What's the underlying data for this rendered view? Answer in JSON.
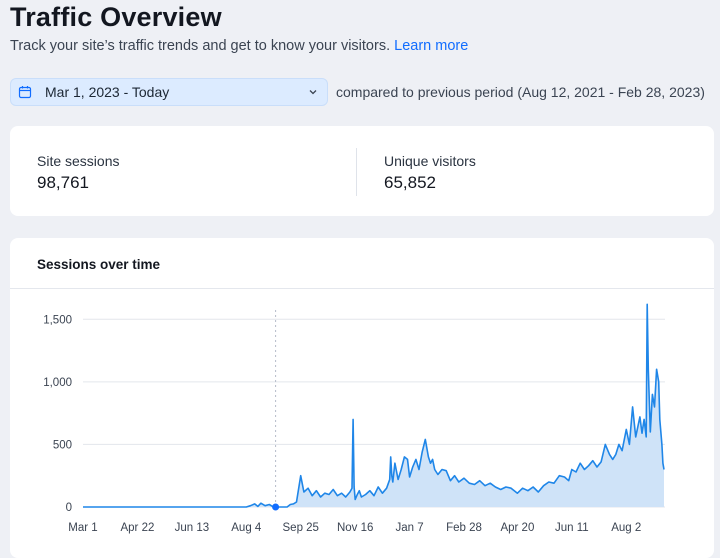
{
  "header": {
    "title": "Traffic Overview",
    "subtitle": "Track your site’s traffic trends and get to know your visitors.",
    "learn_more": "Learn more"
  },
  "date_filter": {
    "icon": "calendar-icon",
    "selected": "Mar 1, 2023 - Today",
    "comparison": "compared to previous period (Aug 12, 2021 - Feb 28, 2023)"
  },
  "stats": {
    "site_sessions": {
      "label": "Site sessions",
      "value": "98,761"
    },
    "unique_visitors": {
      "label": "Unique visitors",
      "value": "65,852"
    }
  },
  "chart_panel": {
    "title": "Sessions over time"
  },
  "colors": {
    "accent": "#116dff",
    "line": "#1f86e8",
    "fill": "#cfe3f8"
  },
  "chart_data": {
    "type": "area",
    "title": "Sessions over time",
    "xlabel": "",
    "ylabel": "",
    "ylim": [
      0,
      1750
    ],
    "yticks": [
      0,
      500,
      1000,
      1500
    ],
    "ytick_labels": [
      "0",
      "500",
      "1,000",
      "1,500"
    ],
    "xticks": [
      "Mar 1",
      "Apr 22",
      "Jun 13",
      "Aug 4",
      "Sep 25",
      "Nov 16",
      "Jan 7",
      "Feb 28",
      "Apr 20",
      "Jun 11",
      "Aug 2"
    ],
    "grid": true,
    "series": [
      {
        "x": [
          "Mar 1",
          "Mar 15",
          "Apr 1",
          "Apr 22",
          "May 15",
          "Jun 13",
          "Jul 10",
          "Jul 25",
          "Jul 30",
          "Aug 4",
          "Aug 8",
          "Aug 12",
          "Aug 15",
          "Aug 18",
          "Aug 22",
          "Aug 26",
          "Aug 29",
          "Sep 1",
          "Sep 8",
          "Sep 10",
          "Sep 12",
          "Sep 15",
          "Sep 18",
          "Sep 21",
          "Sep 25",
          "Sep 28",
          "Oct 2",
          "Oct 6",
          "Oct 10",
          "Oct 14",
          "Oct 18",
          "Oct 22",
          "Oct 26",
          "Oct 30",
          "Nov 3",
          "Nov 7",
          "Nov 11",
          "Nov 13",
          "Nov 14",
          "Nov 15",
          "Nov 16",
          "Nov 18",
          "Nov 20",
          "Nov 22",
          "Nov 26",
          "Nov 30",
          "Dec 4",
          "Dec 8",
          "Dec 12",
          "Dec 16",
          "Dec 19",
          "Dec 20",
          "Dec 21",
          "Dec 22",
          "Dec 24",
          "Dec 27",
          "Dec 30",
          "Jan 2",
          "Jan 5",
          "Jan 7",
          "Jan 10",
          "Jan 13",
          "Jan 16",
          "Jan 19",
          "Jan 22",
          "Jan 25",
          "Jan 27",
          "Jan 29",
          "Jan 31",
          "Feb 3",
          "Feb 7",
          "Feb 11",
          "Feb 15",
          "Feb 19",
          "Feb 23",
          "Feb 28",
          "Mar 5",
          "Mar 10",
          "Mar 15",
          "Mar 20",
          "Mar 25",
          "Mar 30",
          "Apr 4",
          "Apr 9",
          "Apr 14",
          "Apr 20",
          "Apr 25",
          "Apr 30",
          "May 5",
          "May 10",
          "May 15",
          "May 20",
          "May 25",
          "May 30",
          "Jun 4",
          "Jun 8",
          "Jun 11",
          "Jun 15",
          "Jun 19",
          "Jun 23",
          "Jun 27",
          "Jul 1",
          "Jul 5",
          "Jul 9",
          "Jul 13",
          "Jul 17",
          "Jul 20",
          "Jul 23",
          "Jul 26",
          "Jul 29",
          "Aug 2",
          "Aug 5",
          "Aug 8",
          "Aug 11",
          "Aug 13",
          "Aug 15",
          "Aug 17",
          "Aug 19",
          "Aug 21",
          "Aug 22",
          "Aug 23",
          "Aug 25",
          "Aug 27",
          "Aug 29",
          "Aug 31",
          "Sep 2",
          "Sep 3",
          "Sep 5",
          "Sep 6",
          "Sep 7"
        ],
        "values": [
          0,
          0,
          0,
          0,
          0,
          0,
          0,
          0,
          0,
          0,
          10,
          25,
          5,
          30,
          10,
          20,
          5,
          0,
          0,
          0,
          0,
          20,
          25,
          40,
          250,
          120,
          150,
          90,
          130,
          80,
          110,
          100,
          140,
          90,
          110,
          80,
          120,
          150,
          700,
          160,
          60,
          100,
          130,
          80,
          100,
          130,
          90,
          160,
          110,
          150,
          220,
          400,
          250,
          200,
          350,
          220,
          300,
          400,
          380,
          240,
          320,
          380,
          300,
          440,
          540,
          400,
          350,
          380,
          300,
          260,
          300,
          290,
          210,
          250,
          200,
          230,
          190,
          180,
          210,
          170,
          190,
          160,
          140,
          160,
          150,
          110,
          150,
          130,
          160,
          120,
          170,
          200,
          190,
          250,
          240,
          210,
          300,
          280,
          350,
          300,
          330,
          370,
          320,
          360,
          500,
          420,
          380,
          420,
          500,
          450,
          620,
          500,
          800,
          560,
          640,
          720,
          590,
          700,
          560,
          1620,
          1100,
          600,
          900,
          800,
          1100,
          1000,
          700,
          500,
          350,
          300
        ]
      }
    ]
  }
}
